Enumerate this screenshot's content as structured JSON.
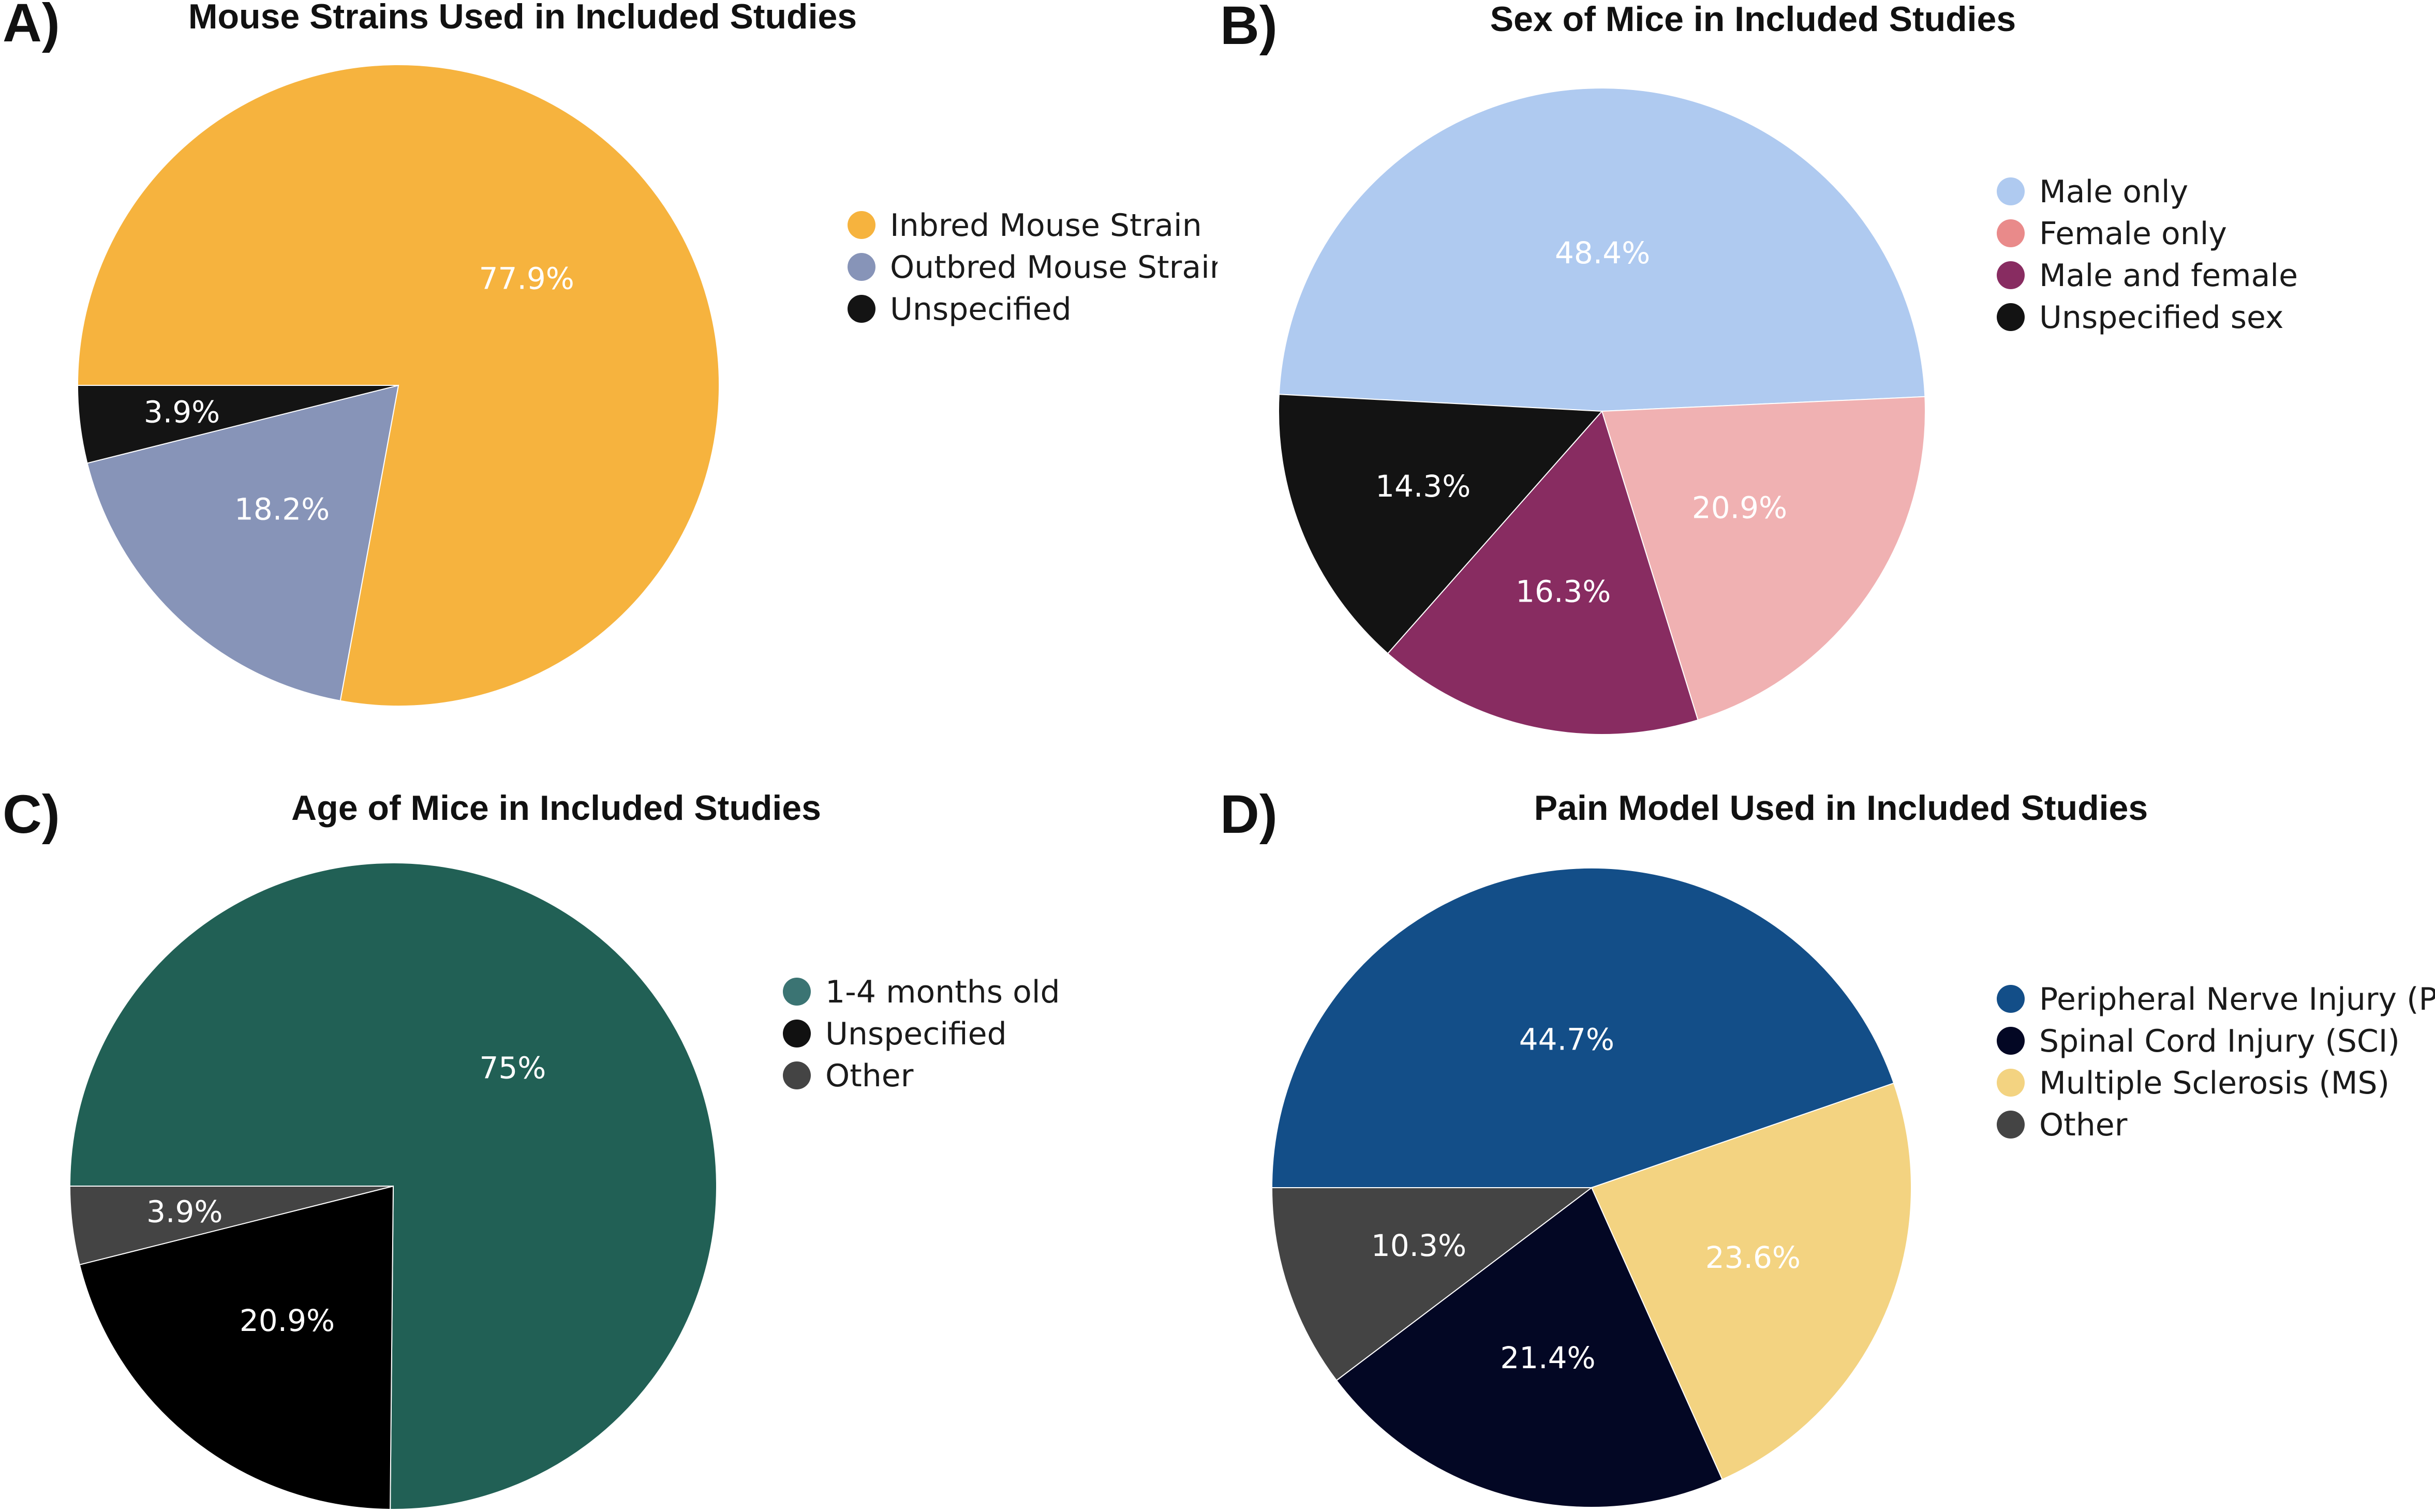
{
  "chart_data": [
    {
      "type": "pie",
      "panel_label": "A)",
      "title": "Mouse Strains Used in Included Studies",
      "categories": [
        "Inbred Mouse Strain",
        "Outbred Mouse Strain",
        "Unspecified"
      ],
      "values": [
        77.9,
        18.2,
        3.9
      ],
      "value_labels": [
        "77.9%",
        "18.2%",
        "3.9%"
      ],
      "colors": [
        "#F6B33E",
        "#8794B8",
        "#141414"
      ],
      "start_angle_deg": 180,
      "direction": "clockwise",
      "legend_position": "right"
    },
    {
      "type": "pie",
      "panel_label": "B)",
      "title": "Sex of Mice in Included Studies",
      "categories": [
        "Male only",
        "Female only",
        "Male and female",
        "Unspecified sex"
      ],
      "values": [
        48.4,
        20.9,
        16.3,
        14.3
      ],
      "value_labels": [
        "48.4%",
        "20.9%",
        "16.3%",
        "14.3%"
      ],
      "colors": [
        "#AFCAF0",
        "#F0B1B2",
        "#882C61",
        "#131313"
      ],
      "legend_colors": [
        "#AFCAF0",
        "#E98A8A",
        "#882C61",
        "#131313"
      ],
      "start_angle_deg": 183,
      "direction": "clockwise",
      "legend_position": "right"
    },
    {
      "type": "pie",
      "panel_label": "C)",
      "title": "Age of Mice in Included Studies",
      "categories": [
        "1-4 months old",
        "Unspecified",
        "Other"
      ],
      "values": [
        75,
        20.9,
        3.9
      ],
      "value_labels": [
        "75%",
        "20.9%",
        "3.9%"
      ],
      "colors": [
        "#216055",
        "#000000",
        "#444444"
      ],
      "legend_colors": [
        "#3B7473",
        "#111111",
        "#444444"
      ],
      "start_angle_deg": 180,
      "direction": "clockwise",
      "legend_position": "right"
    },
    {
      "type": "pie",
      "panel_label": "D)",
      "title": "Pain Model Used in Included Studies",
      "categories": [
        "Peripheral Nerve Injury (PNI)",
        "Spinal Cord Injury (SCI)",
        "Multiple Sclerosis (MS)",
        "Other"
      ],
      "values": [
        44.7,
        21.4,
        23.6,
        10.3
      ],
      "value_labels": [
        "44.7%",
        "21.4%",
        "23.6%",
        "10.3%"
      ],
      "slice_order": [
        0,
        2,
        1,
        3
      ],
      "colors": [
        "#134E88",
        "#030724",
        "#F3D381",
        "#444444"
      ],
      "start_angle_deg": 180,
      "direction": "clockwise",
      "legend_position": "right"
    }
  ]
}
